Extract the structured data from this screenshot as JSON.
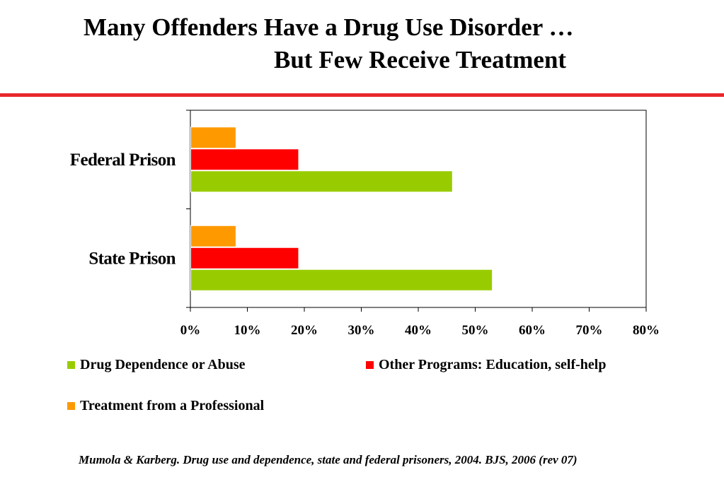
{
  "title": {
    "line1": "Many Offenders Have a Drug Use Disorder …",
    "line2": "But Few Receive Treatment"
  },
  "source": "Mumola & Karberg. Drug use and dependence, state and federal prisoners, 2004.  BJS, 2006 (rev 07)",
  "chart_data": {
    "type": "bar",
    "orientation": "horizontal",
    "categories": [
      "Federal Prison",
      "State Prison"
    ],
    "series": [
      {
        "name": "Treatment from a Professional",
        "color": "#ff9900",
        "values": [
          8,
          8
        ]
      },
      {
        "name": "Other Programs:  Education, self-help",
        "color": "#ff0000",
        "values": [
          19,
          19
        ]
      },
      {
        "name": "Drug Dependence or Abuse",
        "color": "#99cc00",
        "values": [
          46,
          53
        ]
      }
    ],
    "x_ticks": [
      "0%",
      "10%",
      "20%",
      "30%",
      "40%",
      "50%",
      "60%",
      "70%",
      "80%"
    ],
    "xlim": [
      0,
      80
    ],
    "grid": false,
    "legend_position": "bottom"
  }
}
